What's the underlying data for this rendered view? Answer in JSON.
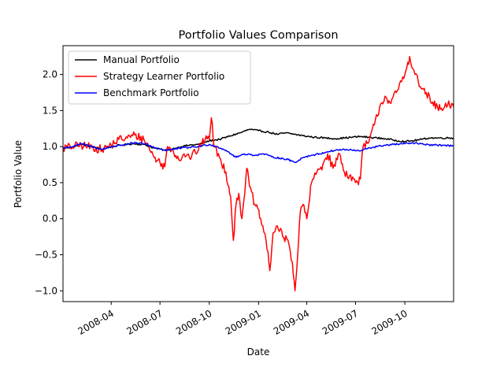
{
  "chart_data": {
    "type": "line",
    "title": "Portfolio Values Comparison",
    "xlabel": "Date",
    "ylabel": "Portfolio Value",
    "xlim": [
      "2008-01-02",
      "2009-12-31"
    ],
    "ylim": [
      -1.15,
      2.4
    ],
    "grid": false,
    "legend_position": "top-left",
    "xticks": [
      {
        "value": "2008-04-01",
        "label": "2008-04"
      },
      {
        "value": "2008-07-01",
        "label": "2008-07"
      },
      {
        "value": "2008-10-01",
        "label": "2008-10"
      },
      {
        "value": "2009-01-01",
        "label": "2009-01"
      },
      {
        "value": "2009-04-01",
        "label": "2009-04"
      },
      {
        "value": "2009-07-01",
        "label": "2009-07"
      },
      {
        "value": "2009-10-01",
        "label": "2009-10"
      }
    ],
    "yticks": [
      -1.0,
      -0.5,
      0.0,
      0.5,
      1.0,
      1.5,
      2.0
    ],
    "series": [
      {
        "name": "Manual Portfolio",
        "color": "#000000",
        "points": [
          [
            "2008-01-02",
            0.98
          ],
          [
            "2008-01-20",
            0.99
          ],
          [
            "2008-02-05",
            1.03
          ],
          [
            "2008-02-25",
            1.0
          ],
          [
            "2008-03-15",
            0.96
          ],
          [
            "2008-04-01",
            1.0
          ],
          [
            "2008-04-20",
            1.02
          ],
          [
            "2008-05-10",
            1.04
          ],
          [
            "2008-06-01",
            1.03
          ],
          [
            "2008-06-20",
            0.98
          ],
          [
            "2008-07-10",
            0.95
          ],
          [
            "2008-07-25",
            0.97
          ],
          [
            "2008-08-10",
            1.0
          ],
          [
            "2008-08-25",
            1.02
          ],
          [
            "2008-09-10",
            1.03
          ],
          [
            "2008-10-01",
            1.08
          ],
          [
            "2008-10-20",
            1.1
          ],
          [
            "2008-11-10",
            1.15
          ],
          [
            "2008-12-01",
            1.2
          ],
          [
            "2008-12-15",
            1.24
          ],
          [
            "2009-01-01",
            1.22
          ],
          [
            "2009-01-20",
            1.2
          ],
          [
            "2009-02-05",
            1.17
          ],
          [
            "2009-02-20",
            1.19
          ],
          [
            "2009-03-10",
            1.17
          ],
          [
            "2009-03-25",
            1.15
          ],
          [
            "2009-04-15",
            1.13
          ],
          [
            "2009-05-05",
            1.12
          ],
          [
            "2009-05-25",
            1.11
          ],
          [
            "2009-06-10",
            1.12
          ],
          [
            "2009-06-25",
            1.13
          ],
          [
            "2009-07-10",
            1.14
          ],
          [
            "2009-07-25",
            1.13
          ],
          [
            "2009-08-10",
            1.12
          ],
          [
            "2009-08-25",
            1.11
          ],
          [
            "2009-09-10",
            1.09
          ],
          [
            "2009-10-01",
            1.07
          ],
          [
            "2009-10-15",
            1.08
          ],
          [
            "2009-11-01",
            1.1
          ],
          [
            "2009-11-15",
            1.12
          ],
          [
            "2009-12-01",
            1.12
          ],
          [
            "2009-12-31",
            1.12
          ]
        ]
      },
      {
        "name": "Strategy Learner Portfolio",
        "color": "#ff0000",
        "points": [
          [
            "2008-01-02",
            0.98
          ],
          [
            "2008-01-20",
            1.0
          ],
          [
            "2008-02-05",
            1.02
          ],
          [
            "2008-02-25",
            0.99
          ],
          [
            "2008-03-15",
            0.96
          ],
          [
            "2008-04-01",
            1.02
          ],
          [
            "2008-04-15",
            1.1
          ],
          [
            "2008-05-01",
            1.12
          ],
          [
            "2008-05-15",
            1.16
          ],
          [
            "2008-06-01",
            1.1
          ],
          [
            "2008-06-10",
            1.0
          ],
          [
            "2008-06-20",
            0.85
          ],
          [
            "2008-07-01",
            0.78
          ],
          [
            "2008-07-10",
            0.72
          ],
          [
            "2008-07-15",
            1.0
          ],
          [
            "2008-07-25",
            0.96
          ],
          [
            "2008-08-05",
            0.82
          ],
          [
            "2008-08-15",
            0.9
          ],
          [
            "2008-08-25",
            0.85
          ],
          [
            "2008-09-05",
            0.92
          ],
          [
            "2008-09-15",
            1.0
          ],
          [
            "2008-09-25",
            1.15
          ],
          [
            "2008-10-01",
            1.1
          ],
          [
            "2008-10-05",
            1.4
          ],
          [
            "2008-10-10",
            1.0
          ],
          [
            "2008-10-20",
            0.85
          ],
          [
            "2008-11-01",
            0.65
          ],
          [
            "2008-11-10",
            0.3
          ],
          [
            "2008-11-15",
            -0.3
          ],
          [
            "2008-11-20",
            0.2
          ],
          [
            "2008-11-25",
            0.35
          ],
          [
            "2008-12-01",
            0.0
          ],
          [
            "2008-12-10",
            0.7
          ],
          [
            "2008-12-15",
            0.45
          ],
          [
            "2008-12-25",
            0.2
          ],
          [
            "2009-01-05",
            0.0
          ],
          [
            "2009-01-15",
            -0.3
          ],
          [
            "2009-01-22",
            -0.72
          ],
          [
            "2009-01-28",
            -0.2
          ],
          [
            "2009-02-05",
            -0.1
          ],
          [
            "2009-02-15",
            -0.25
          ],
          [
            "2009-02-25",
            -0.3
          ],
          [
            "2009-03-05",
            -0.6
          ],
          [
            "2009-03-10",
            -1.0
          ],
          [
            "2009-03-15",
            -0.5
          ],
          [
            "2009-03-20",
            0.1
          ],
          [
            "2009-03-25",
            0.2
          ],
          [
            "2009-04-01",
            0.0
          ],
          [
            "2009-04-10",
            0.5
          ],
          [
            "2009-04-20",
            0.65
          ],
          [
            "2009-05-01",
            0.75
          ],
          [
            "2009-05-10",
            0.9
          ],
          [
            "2009-05-20",
            0.7
          ],
          [
            "2009-06-01",
            0.9
          ],
          [
            "2009-06-10",
            0.65
          ],
          [
            "2009-06-20",
            0.6
          ],
          [
            "2009-07-01",
            0.5
          ],
          [
            "2009-07-10",
            0.55
          ],
          [
            "2009-07-15",
            1.0
          ],
          [
            "2009-07-25",
            1.05
          ],
          [
            "2009-08-05",
            1.3
          ],
          [
            "2009-08-15",
            1.55
          ],
          [
            "2009-08-25",
            1.7
          ],
          [
            "2009-09-05",
            1.6
          ],
          [
            "2009-09-15",
            1.75
          ],
          [
            "2009-09-25",
            1.9
          ],
          [
            "2009-10-01",
            2.0
          ],
          [
            "2009-10-10",
            2.25
          ],
          [
            "2009-10-20",
            2.0
          ],
          [
            "2009-11-01",
            1.8
          ],
          [
            "2009-11-10",
            1.75
          ],
          [
            "2009-11-20",
            1.6
          ],
          [
            "2009-12-01",
            1.55
          ],
          [
            "2009-12-10",
            1.5
          ],
          [
            "2009-12-20",
            1.58
          ],
          [
            "2009-12-31",
            1.55
          ]
        ]
      },
      {
        "name": "Benchmark Portfolio",
        "color": "#0000ff",
        "points": [
          [
            "2008-01-02",
            0.98
          ],
          [
            "2008-01-20",
            1.0
          ],
          [
            "2008-02-05",
            1.04
          ],
          [
            "2008-02-25",
            1.0
          ],
          [
            "2008-03-15",
            0.96
          ],
          [
            "2008-04-01",
            1.0
          ],
          [
            "2008-04-20",
            1.02
          ],
          [
            "2008-05-10",
            1.05
          ],
          [
            "2008-06-01",
            1.04
          ],
          [
            "2008-06-20",
            0.99
          ],
          [
            "2008-07-10",
            0.95
          ],
          [
            "2008-07-25",
            0.96
          ],
          [
            "2008-08-10",
            0.98
          ],
          [
            "2008-08-25",
            0.99
          ],
          [
            "2008-09-10",
            1.0
          ],
          [
            "2008-10-01",
            1.03
          ],
          [
            "2008-10-15",
            1.0
          ],
          [
            "2008-11-01",
            0.95
          ],
          [
            "2008-11-20",
            0.85
          ],
          [
            "2008-12-05",
            0.9
          ],
          [
            "2008-12-25",
            0.88
          ],
          [
            "2009-01-10",
            0.9
          ],
          [
            "2009-01-25",
            0.86
          ],
          [
            "2009-02-10",
            0.84
          ],
          [
            "2009-02-25",
            0.82
          ],
          [
            "2009-03-10",
            0.78
          ],
          [
            "2009-03-25",
            0.85
          ],
          [
            "2009-04-10",
            0.88
          ],
          [
            "2009-04-25",
            0.9
          ],
          [
            "2009-05-10",
            0.93
          ],
          [
            "2009-05-25",
            0.95
          ],
          [
            "2009-06-10",
            0.96
          ],
          [
            "2009-06-25",
            0.95
          ],
          [
            "2009-07-10",
            0.94
          ],
          [
            "2009-07-25",
            0.98
          ],
          [
            "2009-08-10",
            1.0
          ],
          [
            "2009-08-25",
            1.02
          ],
          [
            "2009-09-10",
            1.03
          ],
          [
            "2009-10-01",
            1.04
          ],
          [
            "2009-10-20",
            1.05
          ],
          [
            "2009-11-05",
            1.03
          ],
          [
            "2009-11-25",
            1.02
          ],
          [
            "2009-12-10",
            1.02
          ],
          [
            "2009-12-31",
            1.01
          ]
        ]
      }
    ]
  }
}
